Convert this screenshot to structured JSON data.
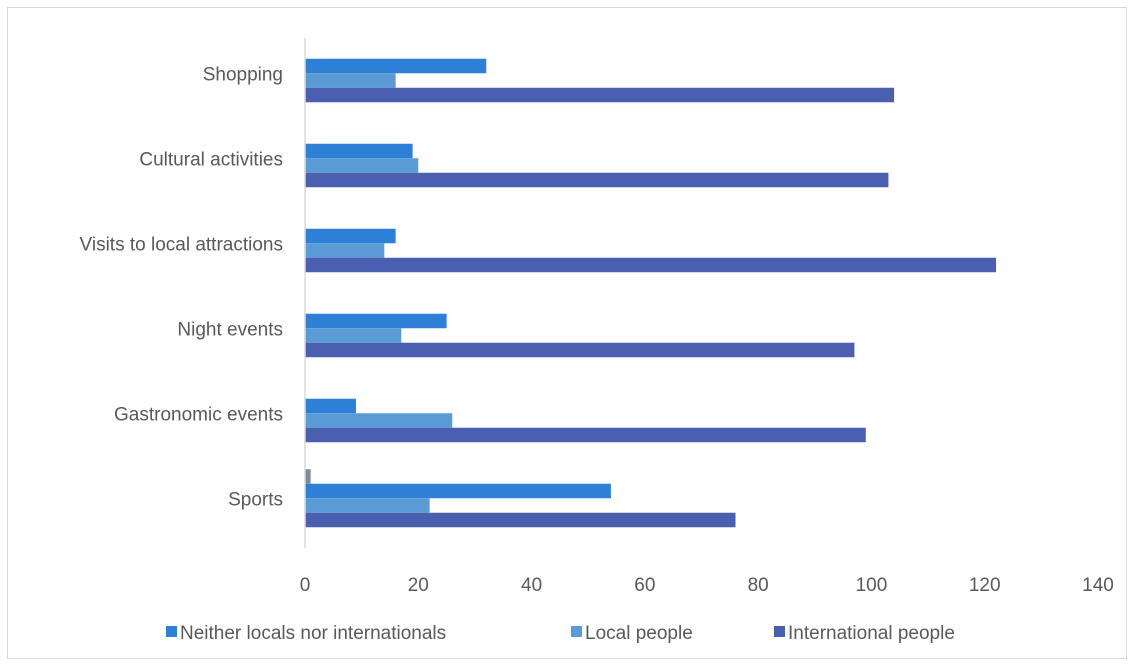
{
  "chart_data": {
    "type": "bar",
    "orientation": "horizontal",
    "categories": [
      "Shopping",
      "Cultural activities",
      "Visits to local attractions",
      "Night events",
      "Gastronomic events",
      "Sports"
    ],
    "series": [
      {
        "name": "Neither locals nor internationals",
        "color": "#2e7fd6",
        "values": [
          32,
          19,
          16,
          25,
          9,
          54
        ]
      },
      {
        "name": "Local people",
        "color": "#5b9bd5",
        "values": [
          16,
          20,
          14,
          17,
          26,
          22
        ]
      },
      {
        "name": "International people",
        "color": "#4a5fb0",
        "values": [
          104,
          103,
          122,
          97,
          99,
          76
        ]
      }
    ],
    "extra_bars": [
      {
        "category": "Sports",
        "value": 1,
        "color": "#7f8c9a"
      }
    ],
    "xlim": [
      0,
      140
    ],
    "xticks": [
      0,
      20,
      40,
      60,
      80,
      100,
      120,
      140
    ],
    "grid": false,
    "legend_position": "bottom",
    "title": "",
    "xlabel": "",
    "ylabel": ""
  }
}
